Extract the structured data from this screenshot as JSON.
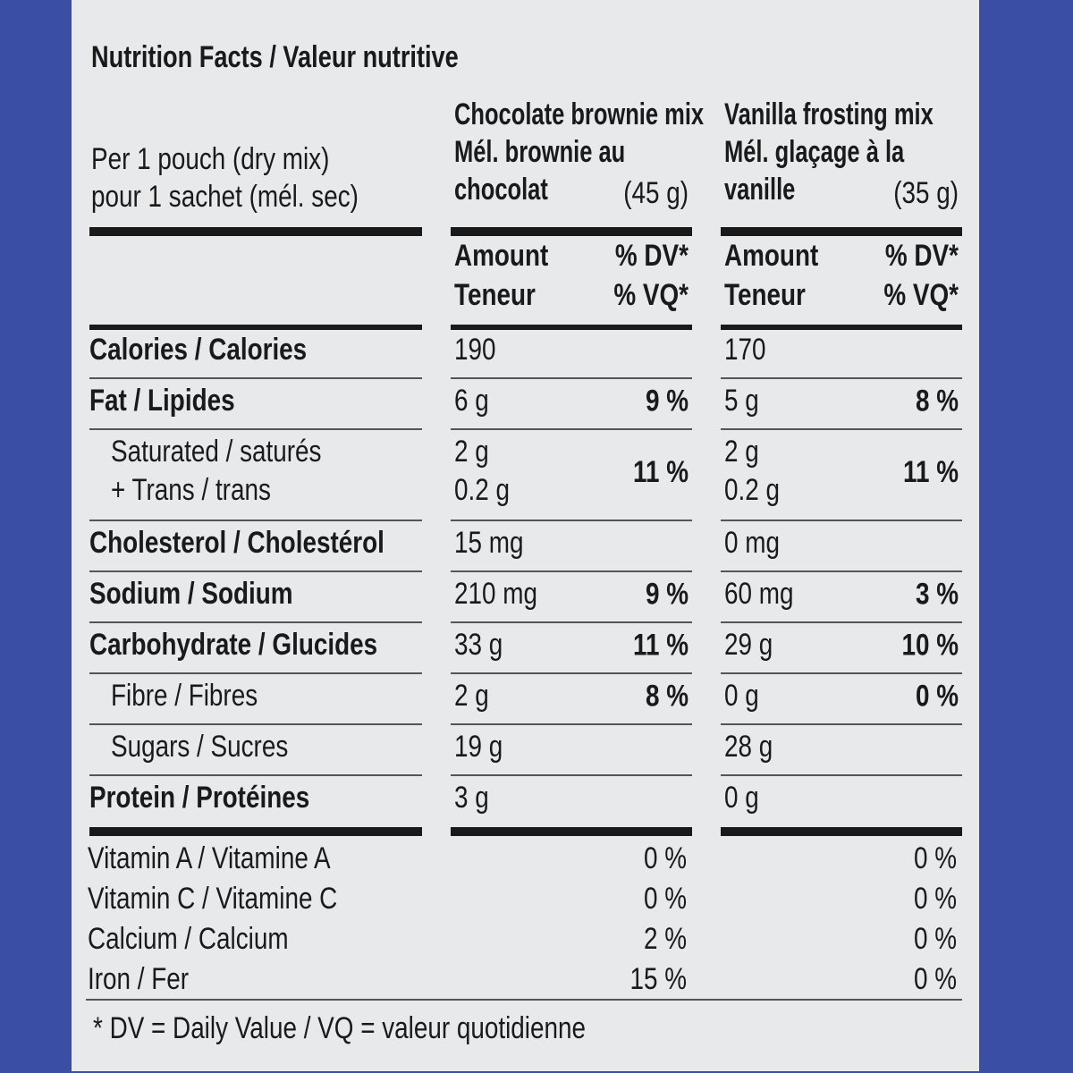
{
  "title": "Nutrition Facts / Valeur nutritive",
  "serving": [
    "Per 1 pouch (dry mix)",
    "pour 1 sachet (mél. sec)"
  ],
  "products": [
    {
      "name": [
        "Chocolate brownie mix",
        "Mél. brownie au",
        "chocolat"
      ],
      "size": "(45 g)",
      "amount_header": [
        "Amount",
        "Teneur"
      ],
      "dv_header": [
        "% DV*",
        "% VQ*"
      ]
    },
    {
      "name": [
        "Vanilla frosting mix",
        "Mél. glaçage à la",
        "vanille"
      ],
      "size": "(35 g)",
      "amount_header": [
        "Amount",
        "Teneur"
      ],
      "dv_header": [
        "% DV*",
        "% VQ*"
      ]
    }
  ],
  "nutrients": [
    {
      "label": [
        "Calories / Calories"
      ],
      "bold": true,
      "values": [
        {
          "amount": [
            "190"
          ]
        },
        {
          "amount": [
            "170"
          ]
        }
      ]
    },
    {
      "label": [
        "Fat / Lipides"
      ],
      "bold": true,
      "values": [
        {
          "amount": [
            "6 g"
          ],
          "dv": "9 %"
        },
        {
          "amount": [
            "5 g"
          ],
          "dv": "8 %"
        }
      ]
    },
    {
      "label": [
        "Saturated / saturés",
        "+ Trans / trans"
      ],
      "bold": false,
      "values": [
        {
          "amount": [
            "2 g",
            "0.2 g"
          ],
          "dv": "11 %"
        },
        {
          "amount": [
            "2 g",
            "0.2 g"
          ],
          "dv": "11 %"
        }
      ]
    },
    {
      "label": [
        "Cholesterol / Cholestérol"
      ],
      "bold": true,
      "values": [
        {
          "amount": [
            "15 mg"
          ]
        },
        {
          "amount": [
            "0 mg"
          ]
        }
      ]
    },
    {
      "label": [
        "Sodium / Sodium"
      ],
      "bold": true,
      "values": [
        {
          "amount": [
            "210 mg"
          ],
          "dv": "9 %"
        },
        {
          "amount": [
            "60 mg"
          ],
          "dv": "3 %"
        }
      ]
    },
    {
      "label": [
        "Carbohydrate / Glucides"
      ],
      "bold": true,
      "values": [
        {
          "amount": [
            "33 g"
          ],
          "dv": "11 %"
        },
        {
          "amount": [
            "29 g"
          ],
          "dv": "10 %"
        }
      ]
    },
    {
      "label": [
        "Fibre / Fibres"
      ],
      "bold": false,
      "values": [
        {
          "amount": [
            "2 g"
          ],
          "dv": "8 %"
        },
        {
          "amount": [
            "0 g"
          ],
          "dv": "0 %"
        }
      ]
    },
    {
      "label": [
        "Sugars / Sucres"
      ],
      "bold": false,
      "values": [
        {
          "amount": [
            "19 g"
          ]
        },
        {
          "amount": [
            "28 g"
          ]
        }
      ]
    },
    {
      "label": [
        "Protein / Protéines"
      ],
      "bold": true,
      "values": [
        {
          "amount": [
            "3 g"
          ]
        },
        {
          "amount": [
            "0 g"
          ]
        }
      ]
    }
  ],
  "vitamins": [
    {
      "label": "Vitamin A / Vitamine A",
      "values": [
        "0 %",
        "0 %"
      ]
    },
    {
      "label": "Vitamin C / Vitamine C",
      "values": [
        "0 %",
        "0 %"
      ]
    },
    {
      "label": "Calcium / Calcium",
      "values": [
        "2 %",
        "0 %"
      ]
    },
    {
      "label": "Iron / Fer",
      "values": [
        "15 %",
        "0 %"
      ]
    }
  ],
  "footnote": "* DV = Daily Value / VQ = valeur quotidienne"
}
